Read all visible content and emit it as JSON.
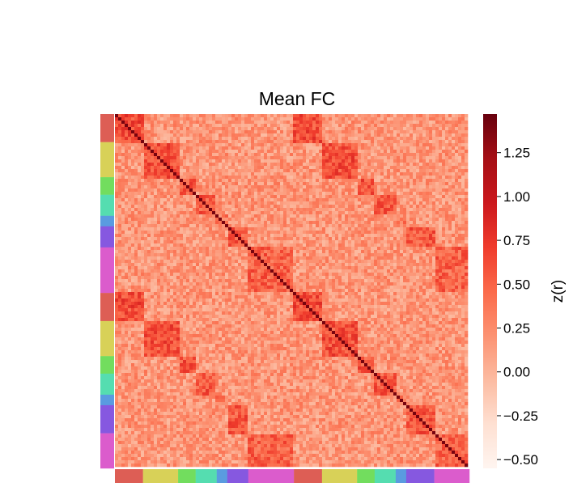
{
  "chart_data": {
    "type": "heatmap",
    "title": "Mean FC",
    "colorbar": {
      "label": "z(r)",
      "range": [
        -0.55,
        1.47
      ],
      "ticks": [
        "1.25",
        "1.00",
        "0.75",
        "0.50",
        "0.25",
        "0.00",
        "−0.25",
        "−0.50"
      ],
      "tick_values": [
        1.25,
        1.0,
        0.75,
        0.5,
        0.25,
        0.0,
        -0.25,
        -0.5
      ],
      "colormap": "Reds"
    },
    "module_colors": {
      "red": "#dd5e55",
      "yellow": "#d8d158",
      "green": "#72dd5e",
      "teal": "#55ddb0",
      "blue": "#5a9be0",
      "purple": "#8658e0",
      "magenta": "#db5ccc"
    },
    "modules": [
      {
        "color": "red",
        "size": 8
      },
      {
        "color": "yellow",
        "size": 10
      },
      {
        "color": "green",
        "size": 5
      },
      {
        "color": "teal",
        "size": 6
      },
      {
        "color": "blue",
        "size": 3
      },
      {
        "color": "purple",
        "size": 6
      },
      {
        "color": "magenta",
        "size": 13
      },
      {
        "color": "red",
        "size": 8
      },
      {
        "color": "yellow",
        "size": 10
      },
      {
        "color": "green",
        "size": 5
      },
      {
        "color": "teal",
        "size": 6
      },
      {
        "color": "blue",
        "size": 3
      },
      {
        "color": "purple",
        "size": 8
      },
      {
        "color": "magenta",
        "size": 10
      }
    ],
    "grid": false,
    "legend": "right"
  }
}
